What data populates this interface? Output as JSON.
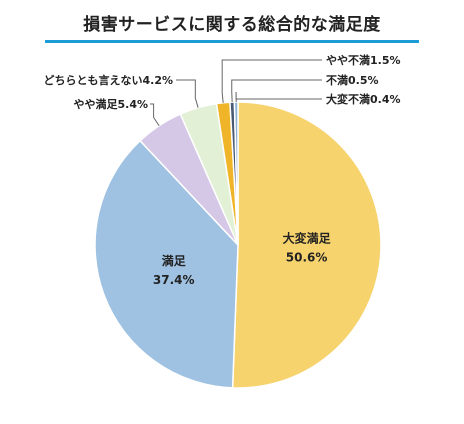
{
  "chart_data": {
    "type": "pie",
    "title": "損害サービスに関する総合的な満足度",
    "categories": [
      "大変満足",
      "満足",
      "やや満足",
      "どちらとも言えない",
      "やや不満",
      "不満",
      "大変不満"
    ],
    "values": [
      50.6,
      37.4,
      5.4,
      4.2,
      1.5,
      0.5,
      0.4
    ],
    "value_labels": [
      "50.6%",
      "37.4%",
      "5.4%",
      "4.2%",
      "1.5%",
      "0.5%",
      "0.4%"
    ],
    "slice_labels": [
      "大変満足",
      "満足",
      "やや満足5.4%",
      "どちらとも言えない4.2%",
      "やや不満1.5%",
      "不満0.5%",
      "大変不満0.4%"
    ],
    "colors": [
      "#f7d36e",
      "#9fc2e2",
      "#d5c8e6",
      "#e2f0d6",
      "#f0b429",
      "#4a5a74",
      "#8eb2d6"
    ]
  },
  "title_rule_color": "#1d9bd7"
}
